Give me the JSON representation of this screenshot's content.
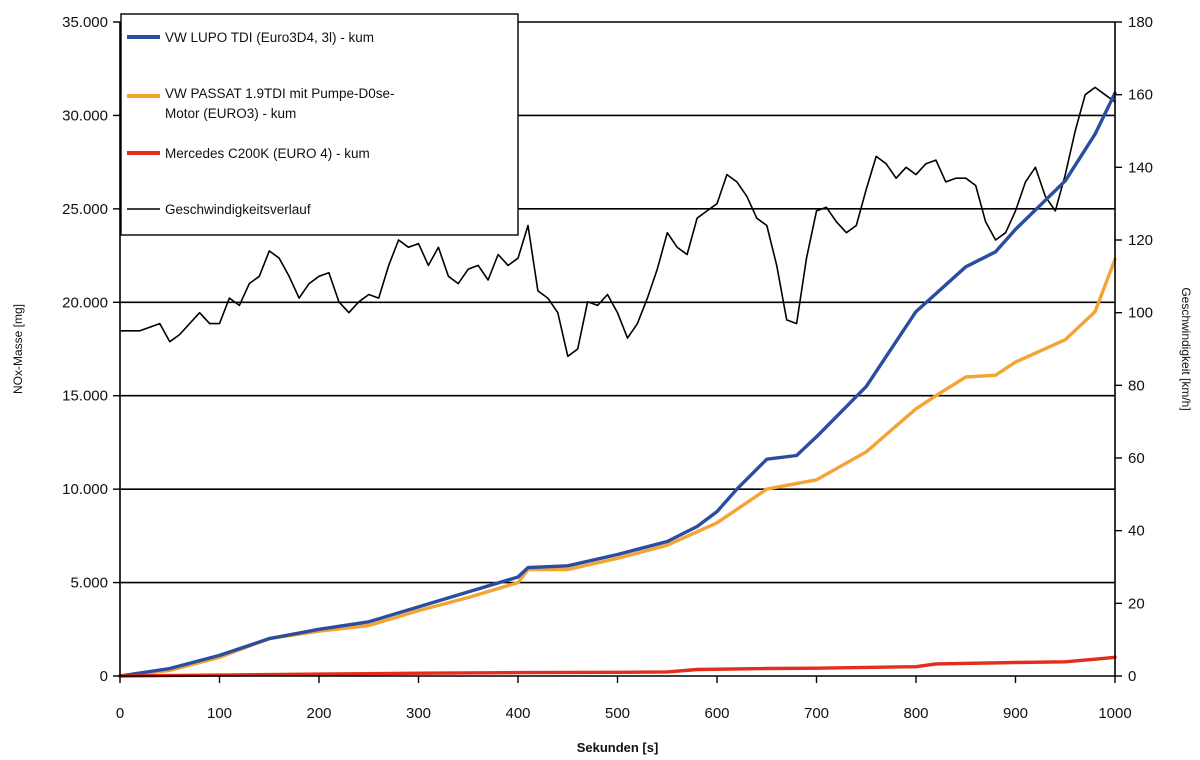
{
  "chart_data": {
    "type": "line",
    "title": "",
    "xlabel": "Sekunden [s]",
    "ylabel_left": "NOx-Masse [mg]",
    "ylabel_right": "Geschwindigkeit [km/h]",
    "xlim": [
      0,
      1000
    ],
    "ylim_left": [
      0,
      35000
    ],
    "ylim_right": [
      0,
      180
    ],
    "x_ticks": [
      "0",
      "100",
      "200",
      "300",
      "400",
      "500",
      "600",
      "700",
      "800",
      "900",
      "1000"
    ],
    "y_left_ticks": [
      "0",
      "5.000",
      "10.000",
      "15.000",
      "20.000",
      "25.000",
      "30.000",
      "35.000"
    ],
    "y_right_ticks": [
      "0",
      "20",
      "40",
      "60",
      "80",
      "100",
      "120",
      "140",
      "160",
      "180"
    ],
    "grid": "horizontal",
    "legend_position": "top-left",
    "series": [
      {
        "name": "VW LUPO TDI (Euro3D4, 3l) - kum",
        "axis": "left",
        "color": "#2b4da0",
        "x": [
          0,
          50,
          100,
          150,
          200,
          250,
          300,
          350,
          400,
          410,
          450,
          500,
          550,
          580,
          600,
          620,
          650,
          680,
          700,
          750,
          800,
          850,
          880,
          900,
          950,
          980,
          1000
        ],
        "y": [
          0,
          400,
          1100,
          2000,
          2500,
          2900,
          3700,
          4500,
          5300,
          5800,
          5900,
          6500,
          7200,
          8000,
          8800,
          10000,
          11600,
          11800,
          12800,
          15500,
          19500,
          21900,
          22700,
          23900,
          26500,
          29000,
          31200
        ]
      },
      {
        "name": "VW PASSAT 1.9TDI mit Pumpe-D0se-Motor (EURO3) - kum",
        "axis": "left",
        "color": "#f4a433",
        "x": [
          0,
          50,
          100,
          150,
          200,
          250,
          300,
          350,
          400,
          410,
          450,
          500,
          550,
          600,
          650,
          700,
          750,
          800,
          820,
          850,
          880,
          900,
          950,
          980,
          1000
        ],
        "y": [
          0,
          300,
          1000,
          2000,
          2400,
          2700,
          3500,
          4200,
          5000,
          5700,
          5700,
          6300,
          7000,
          8200,
          10000,
          10500,
          12000,
          14300,
          15000,
          16000,
          16100,
          16800,
          18000,
          19500,
          22300
        ]
      },
      {
        "name": "Mercedes C200K (EURO 4)  - kum",
        "axis": "left",
        "color": "#e42d1c",
        "x": [
          0,
          100,
          200,
          300,
          400,
          500,
          550,
          580,
          650,
          700,
          800,
          820,
          900,
          950,
          980,
          1000
        ],
        "y": [
          0,
          50,
          100,
          150,
          180,
          200,
          220,
          350,
          400,
          420,
          500,
          650,
          720,
          760,
          900,
          1000
        ]
      },
      {
        "name": "Geschwindigkeitsverlauf",
        "axis": "right",
        "color": "#000000",
        "x": [
          0,
          20,
          40,
          50,
          60,
          80,
          90,
          100,
          110,
          120,
          130,
          140,
          150,
          160,
          170,
          180,
          190,
          200,
          210,
          220,
          230,
          240,
          250,
          260,
          270,
          280,
          290,
          300,
          310,
          320,
          330,
          340,
          350,
          360,
          370,
          380,
          390,
          400,
          410,
          420,
          430,
          440,
          450,
          460,
          470,
          480,
          490,
          500,
          510,
          520,
          530,
          540,
          550,
          560,
          570,
          580,
          590,
          600,
          610,
          620,
          630,
          640,
          650,
          660,
          670,
          680,
          690,
          700,
          710,
          720,
          730,
          740,
          750,
          760,
          770,
          780,
          790,
          800,
          810,
          820,
          830,
          840,
          850,
          860,
          870,
          880,
          890,
          900,
          910,
          920,
          930,
          940,
          950,
          960,
          970,
          980,
          990,
          1000
        ],
        "y": [
          95,
          95,
          97,
          92,
          94,
          100,
          97,
          97,
          104,
          102,
          108,
          110,
          117,
          115,
          110,
          104,
          108,
          110,
          111,
          103,
          100,
          103,
          105,
          104,
          113,
          120,
          118,
          119,
          113,
          118,
          110,
          108,
          112,
          113,
          109,
          116,
          113,
          115,
          124,
          106,
          104,
          100,
          88,
          90,
          103,
          102,
          105,
          100,
          93,
          97,
          104,
          112,
          122,
          118,
          116,
          126,
          128,
          130,
          138,
          136,
          132,
          126,
          124,
          113,
          98,
          97,
          115,
          128,
          129,
          125,
          122,
          124,
          134,
          143,
          141,
          137,
          140,
          138,
          141,
          142,
          136,
          137,
          137,
          135,
          125,
          120,
          122,
          128,
          136,
          140,
          132,
          128,
          138,
          150,
          160,
          162,
          160,
          158
        ]
      }
    ]
  }
}
